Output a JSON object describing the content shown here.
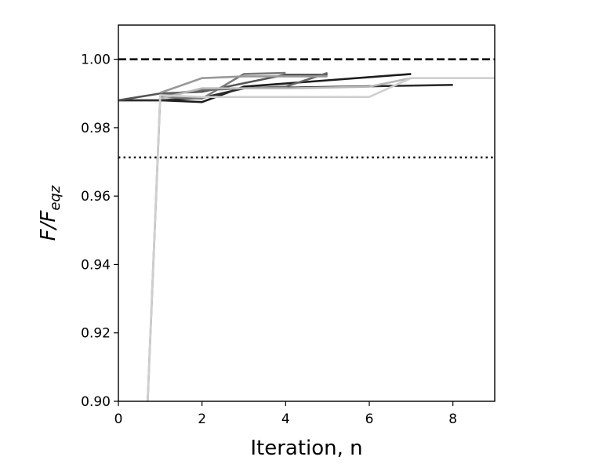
{
  "chart_data": {
    "type": "line",
    "title": "",
    "xlabel": "Iteration, n",
    "ylabel_main": "F/F",
    "ylabel_sub": "eqz",
    "xlim": [
      0,
      9
    ],
    "ylim": [
      0.9,
      1.01
    ],
    "x_ticks": [
      0,
      2,
      4,
      6,
      8
    ],
    "x_tick_labels": [
      "0",
      "2",
      "4",
      "6",
      "8"
    ],
    "y_ticks": [
      0.9,
      0.92,
      0.94,
      0.96,
      0.98,
      1.0
    ],
    "y_tick_labels": [
      "0.90",
      "0.92",
      "0.94",
      "0.96",
      "0.98",
      "1.00"
    ],
    "grid": false,
    "legend": "none",
    "reference_lines": [
      {
        "style": "dashed",
        "y": 1.0,
        "color": "#000000"
      },
      {
        "style": "dotted",
        "y": 0.9713,
        "color": "#000000"
      }
    ],
    "series": [
      {
        "color": "#1c1c1c",
        "x": [
          0,
          1,
          2,
          3,
          7
        ],
        "y": [
          0.988,
          0.988,
          0.9875,
          0.992,
          0.9957
        ]
      },
      {
        "color": "#2c2c2c",
        "x": [
          0,
          1,
          2,
          3,
          8
        ],
        "y": [
          0.988,
          0.988,
          0.9887,
          0.9915,
          0.9925
        ]
      },
      {
        "color": "#555555",
        "x": [
          0,
          1,
          2,
          4,
          5
        ],
        "y": [
          0.988,
          0.99,
          0.9905,
          0.9955,
          0.9955
        ]
      },
      {
        "color": "#7b7b7b",
        "x": [
          0.7,
          1,
          2,
          3,
          4
        ],
        "y": [
          0.9,
          0.989,
          0.9885,
          0.9957,
          0.996
        ]
      },
      {
        "color": "#666666",
        "x": [
          1,
          2,
          4,
          5
        ],
        "y": [
          0.9895,
          0.991,
          0.992,
          0.996
        ]
      },
      {
        "color": "#999999",
        "x": [
          1,
          2,
          3,
          5
        ],
        "y": [
          0.9902,
          0.9945,
          0.995,
          0.995
        ]
      },
      {
        "color": "#b8b8b8",
        "x": [
          1,
          2,
          4,
          6,
          7
        ],
        "y": [
          0.9885,
          0.9915,
          0.9915,
          0.992,
          0.9945
        ]
      },
      {
        "color": "#cfcfcf",
        "x": [
          0.7,
          1,
          2,
          6,
          7,
          9
        ],
        "y": [
          0.9,
          0.9895,
          0.989,
          0.989,
          0.9945,
          0.9945
        ]
      }
    ]
  }
}
